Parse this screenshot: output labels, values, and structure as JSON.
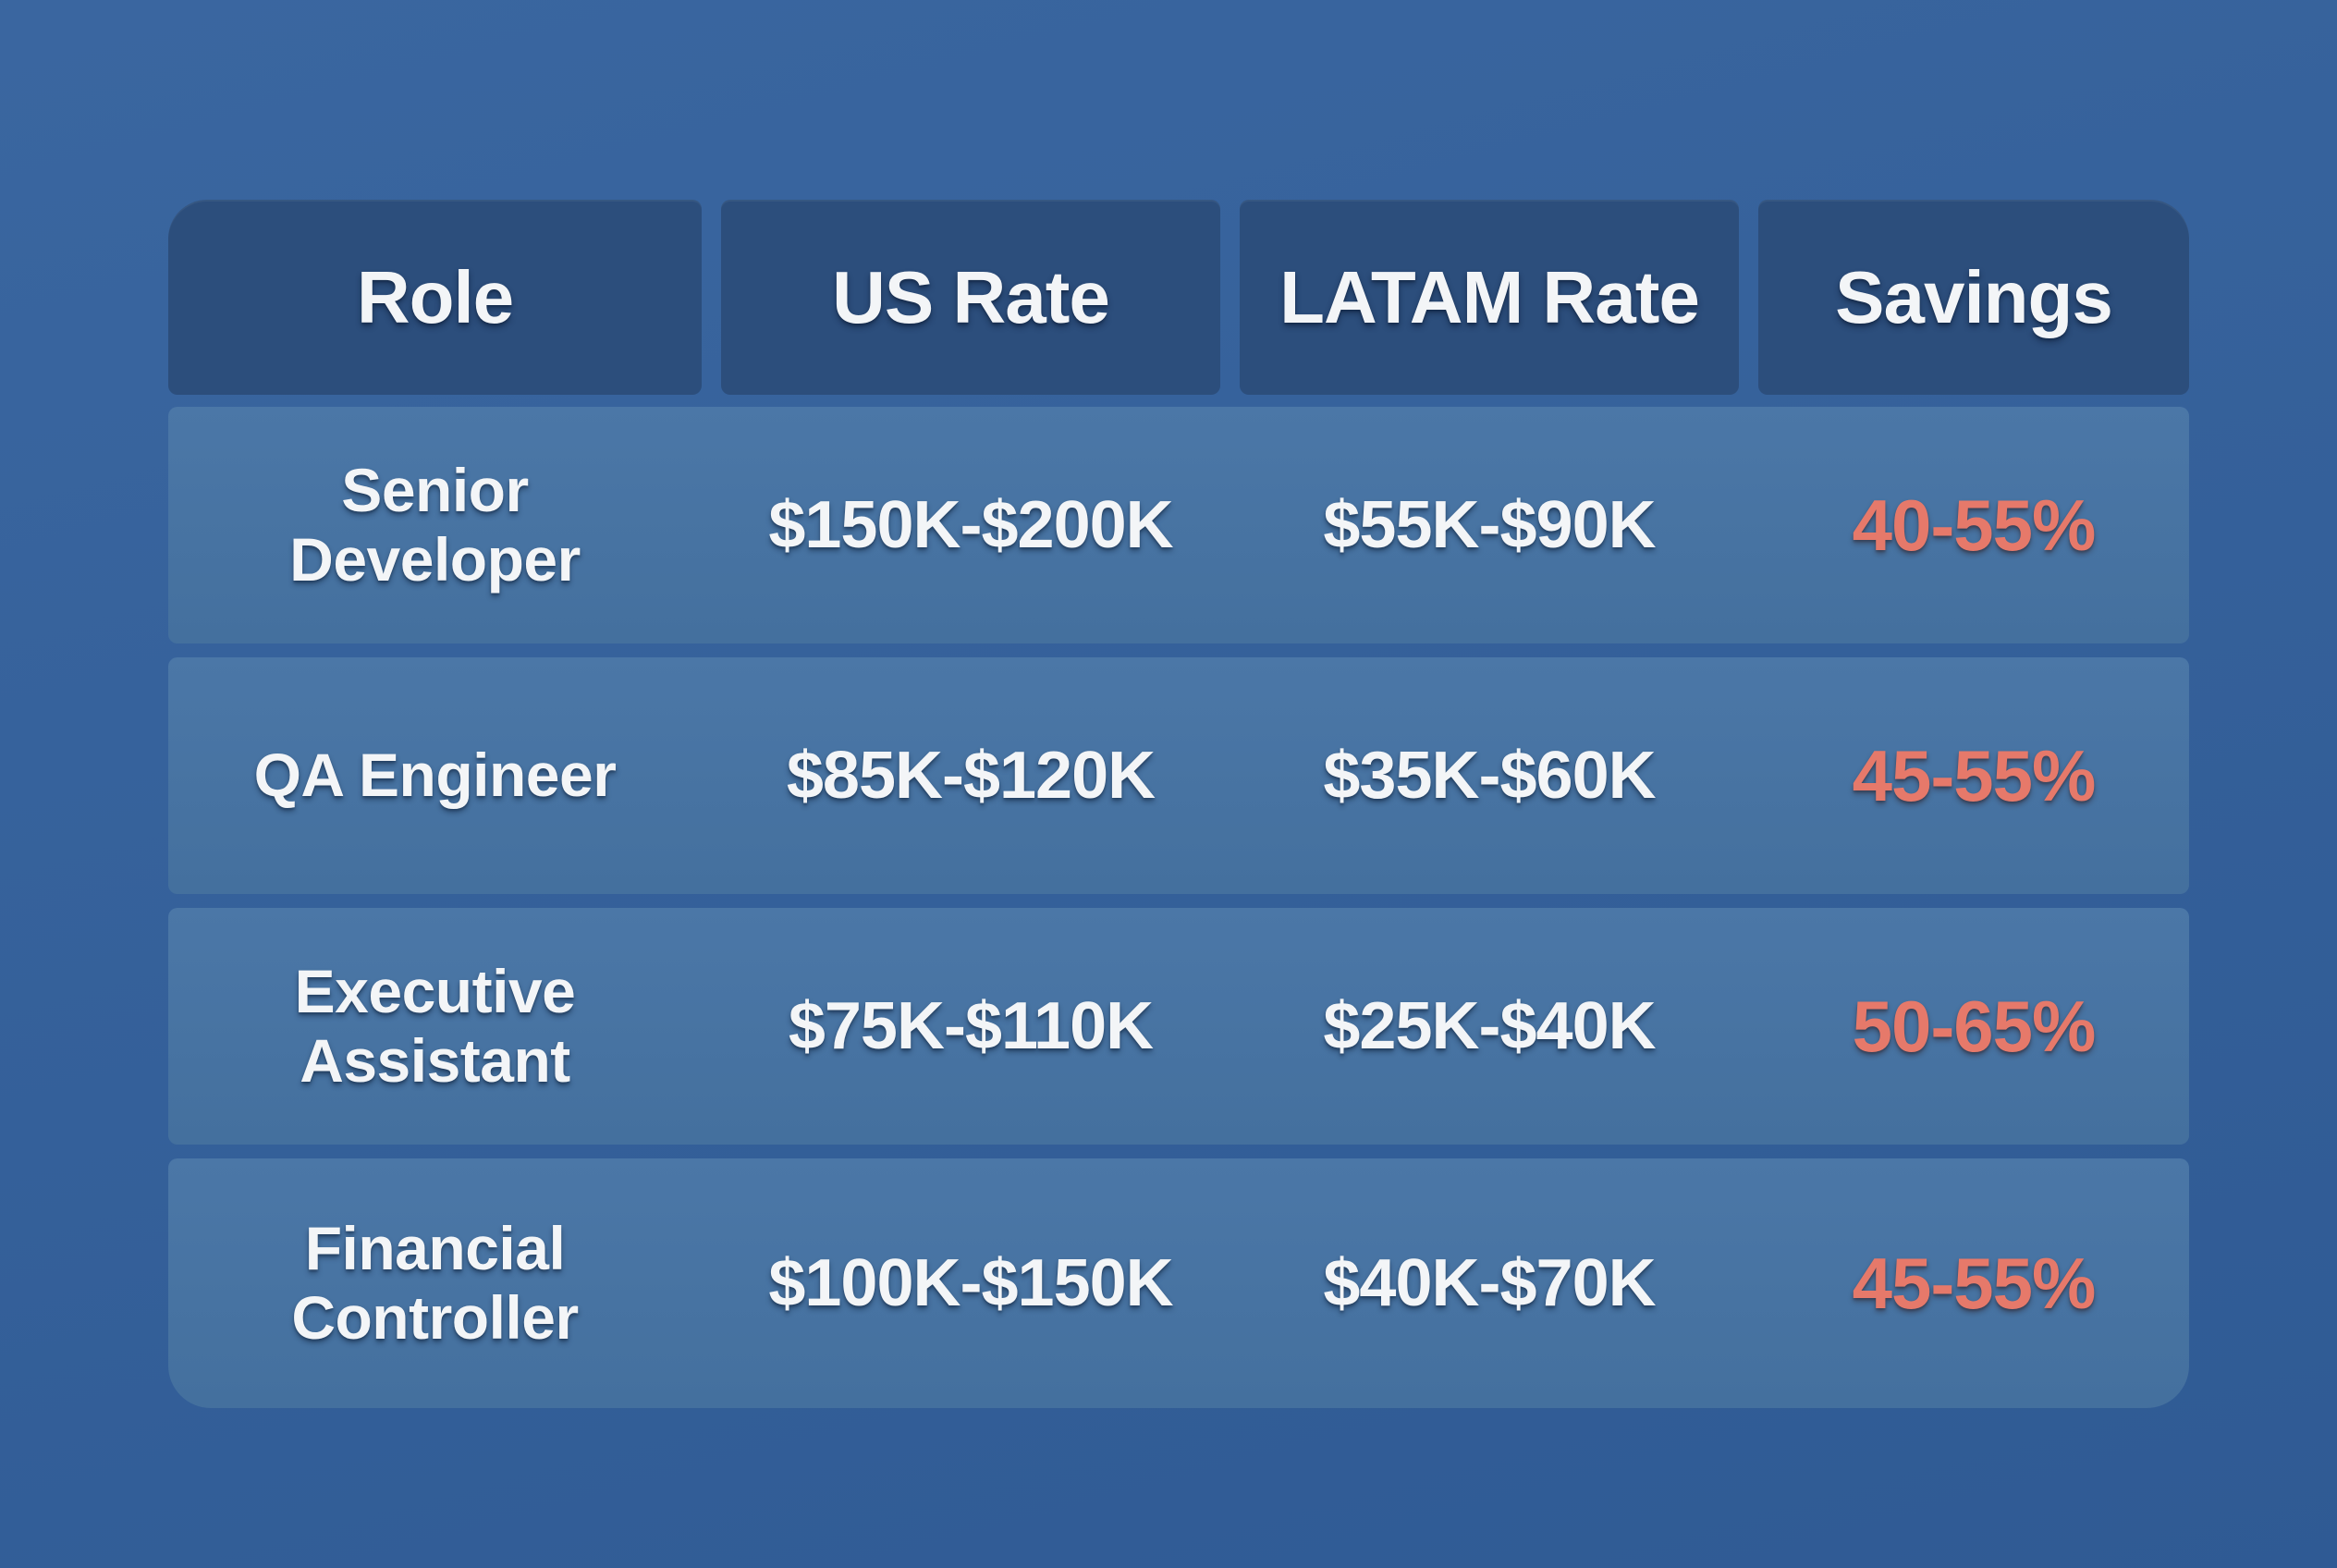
{
  "colors": {
    "page_bg": "#32609c",
    "header_bg": "#2c4e7c",
    "row_bg_top": "#4b77a7",
    "row_bg_bottom": "#44709e",
    "text": "#f3f5f7",
    "savings": "#e6796a"
  },
  "table": {
    "headers": [
      "Role",
      "US Rate",
      "LATAM Rate",
      "Savings"
    ],
    "rows": [
      {
        "role": "Senior Developer",
        "us_rate": "$150K-$200K",
        "latam_rate": "$55K-$90K",
        "savings": "40-55%"
      },
      {
        "role": "QA Engineer",
        "us_rate": "$85K-$120K",
        "latam_rate": "$35K-$60K",
        "savings": "45-55%"
      },
      {
        "role": "Executive Assistant",
        "us_rate": "$75K-$110K",
        "latam_rate": "$25K-$40K",
        "savings": "50-65%"
      },
      {
        "role": "Financial Controller",
        "us_rate": "$100K-$150K",
        "latam_rate": "$40K-$70K",
        "savings": "45-55%"
      }
    ]
  },
  "chart_data": {
    "type": "table",
    "columns": [
      "Role",
      "US Rate",
      "LATAM Rate",
      "Savings"
    ],
    "rows": [
      [
        "Senior Developer",
        "$150K-$200K",
        "$55K-$90K",
        "40-55%"
      ],
      [
        "QA Engineer",
        "$85K-$120K",
        "$35K-$60K",
        "45-55%"
      ],
      [
        "Executive Assistant",
        "$75K-$110K",
        "$25K-$40K",
        "50-65%"
      ],
      [
        "Financial Controller",
        "$100K-$150K",
        "$40K-$70K",
        "45-55%"
      ]
    ],
    "notes": {
      "savings_value_color": "#e6796a",
      "header_position": "top",
      "grid": "rows separated by gaps, no vertical separators in body"
    }
  }
}
